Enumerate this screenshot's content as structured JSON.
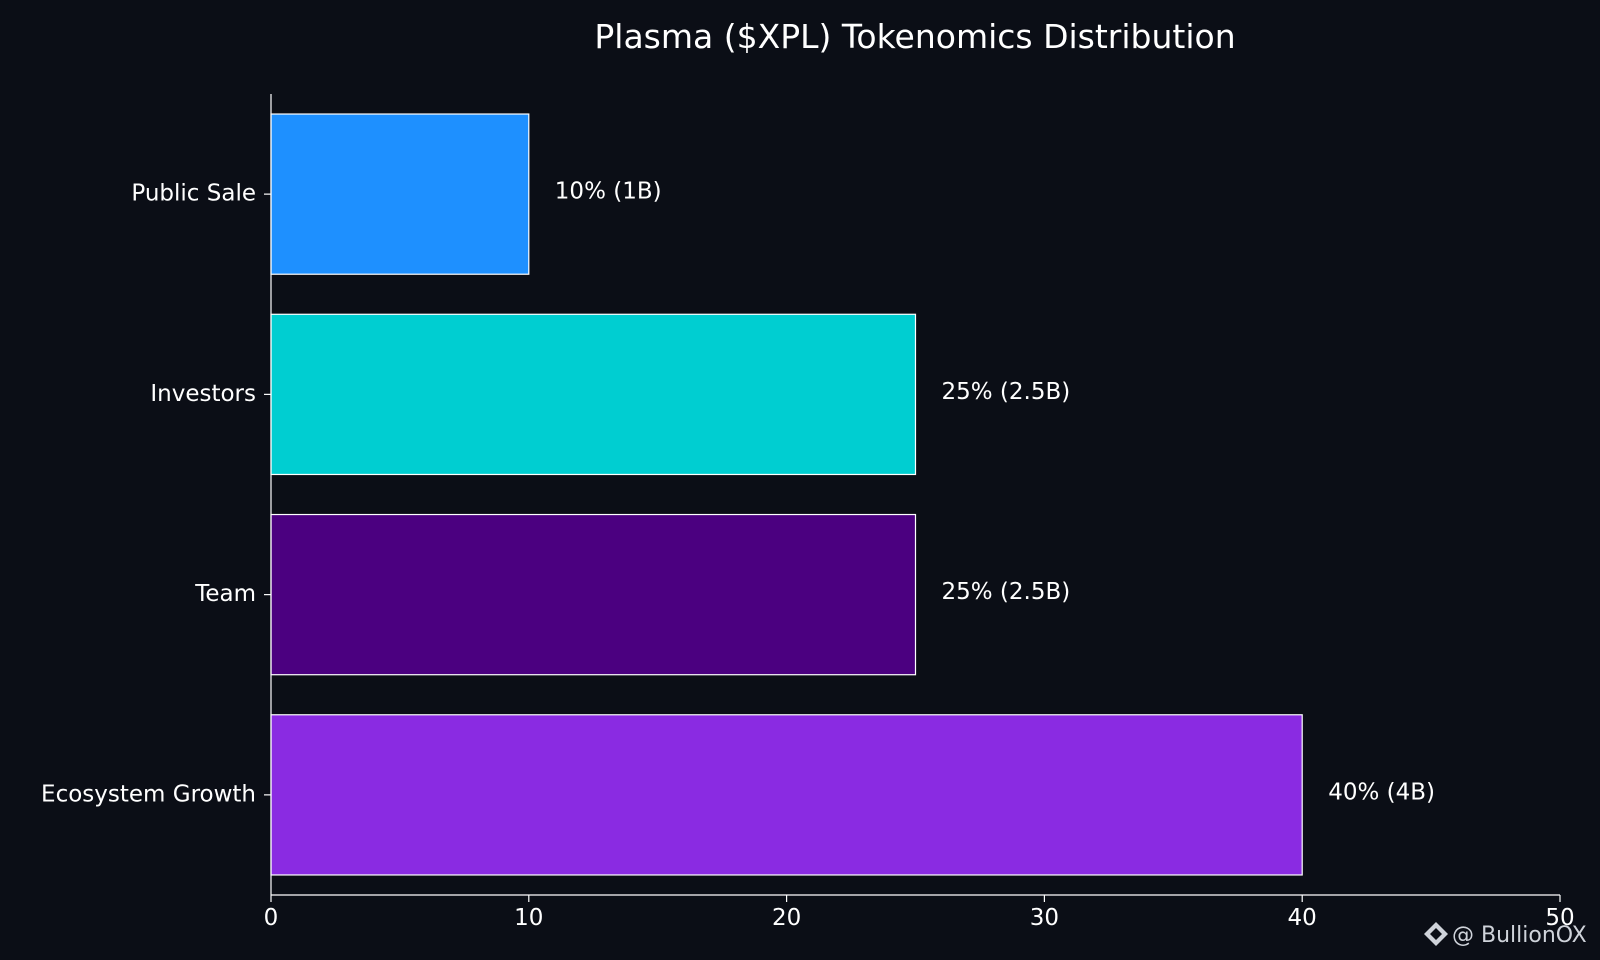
{
  "chart_data": {
    "type": "bar",
    "orientation": "horizontal",
    "title": "Plasma ($XPL) Tokenomics Distribution",
    "xlabel": "",
    "ylabel": "",
    "xlim": [
      0,
      50
    ],
    "x_ticks": [
      0,
      10,
      20,
      30,
      40,
      50
    ],
    "grid": false,
    "categories": [
      "Public Sale",
      "Investors",
      "Team",
      "Ecosystem Growth"
    ],
    "values": [
      10,
      25,
      25,
      40
    ],
    "data_labels": [
      "10% (1B)",
      "25% (2.5B)",
      "25% (2.5B)",
      "40% (4B)"
    ],
    "colors": [
      "#1e90ff",
      "#00ced1",
      "#4b0080",
      "#8a2be2"
    ],
    "bar_edge_color": "#ffffff",
    "background": "#0b0e16"
  },
  "watermark": {
    "text": "@ BullionOX",
    "icon": "binance-diamond-icon"
  }
}
